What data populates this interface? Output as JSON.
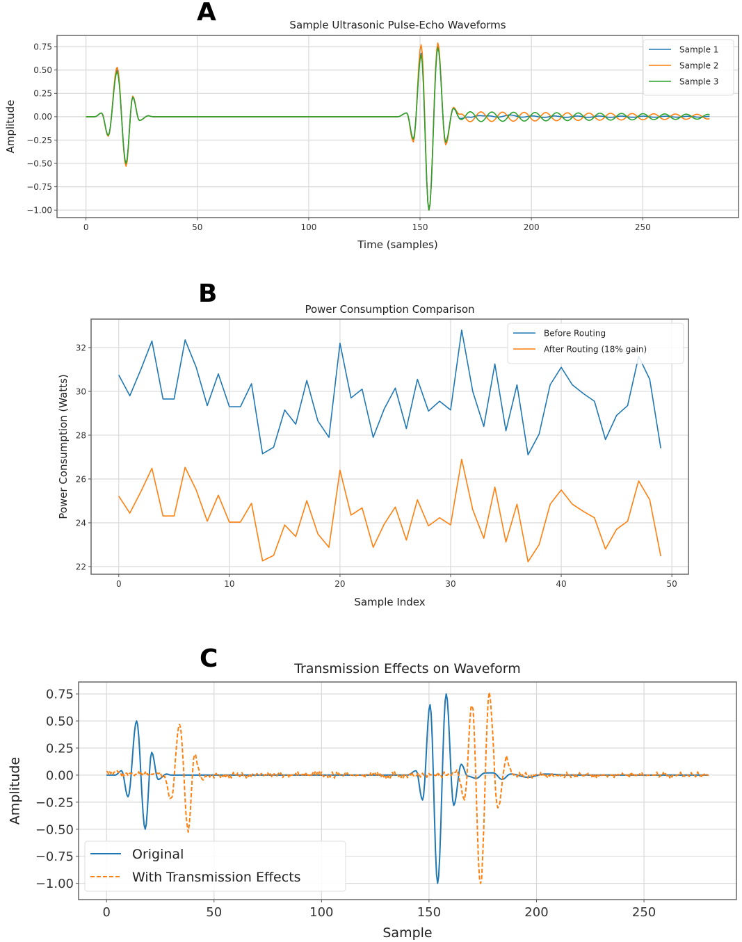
{
  "panels": [
    {
      "letter": "A"
    },
    {
      "letter": "B"
    },
    {
      "letter": "C"
    }
  ],
  "chart_data": [
    {
      "type": "line",
      "title": "Sample Ultrasonic Pulse-Echo Waveforms",
      "xlabel": "Time (samples)",
      "ylabel": "Amplitude",
      "xlim": [
        -13,
        293
      ],
      "ylim": [
        -1.08,
        0.87
      ],
      "xticks": [
        0,
        50,
        100,
        150,
        200,
        250
      ],
      "xtick_labels": [
        "0",
        "50",
        "100",
        "150",
        "200",
        "250"
      ],
      "yticks": [
        0.75,
        0.5,
        0.25,
        0.0,
        -0.25,
        -0.5,
        -0.75,
        -1.0
      ],
      "ytick_labels": [
        "0.75",
        "0.50",
        "0.25",
        "0.00",
        "−0.25",
        "−0.50",
        "−0.75",
        "−1.00"
      ],
      "grid": true,
      "legend_position": "top-right",
      "series": [
        {
          "name": "Sample 1",
          "color": "#1f77b4",
          "points": [
            [
              0,
              0
            ],
            [
              4,
              0
            ],
            [
              7,
              0.04
            ],
            [
              10,
              -0.2
            ],
            [
              14,
              0.5
            ],
            [
              18,
              -0.5
            ],
            [
              21,
              0.21
            ],
            [
              24,
              -0.04
            ],
            [
              28,
              0.01
            ],
            [
              30,
              0
            ],
            [
              140,
              0
            ],
            [
              144,
              0.04
            ],
            [
              147,
              -0.24
            ],
            [
              150.5,
              0.68
            ],
            [
              154,
              -1.0
            ],
            [
              158,
              0.75
            ],
            [
              161.5,
              -0.28
            ],
            [
              165,
              0.09
            ],
            [
              168,
              -0.02
            ],
            [
              172,
              -0.01
            ],
            [
              176,
              0.02
            ],
            [
              180,
              0.0
            ],
            [
              190,
              0.01
            ],
            [
              200,
              0.0
            ],
            [
              280,
              0
            ]
          ],
          "ring": {
            "start": 168,
            "end": 280,
            "amplitude": 0.01,
            "period": 10,
            "phase": 0
          }
        },
        {
          "name": "Sample 2",
          "color": "#ff7f0e",
          "points": [
            [
              0,
              0
            ],
            [
              4,
              0
            ],
            [
              7,
              0.04
            ],
            [
              10,
              -0.21
            ],
            [
              14,
              0.53
            ],
            [
              18,
              -0.53
            ],
            [
              21,
              0.22
            ],
            [
              24,
              -0.04
            ],
            [
              28,
              0.01
            ],
            [
              30,
              0
            ],
            [
              140,
              0
            ],
            [
              144,
              0.04
            ],
            [
              147,
              -0.27
            ],
            [
              150.5,
              0.77
            ],
            [
              154,
              -1.0
            ],
            [
              158,
              0.79
            ],
            [
              161.5,
              -0.3
            ],
            [
              165,
              0.1
            ],
            [
              168,
              0.0
            ],
            [
              280,
              0
            ]
          ],
          "ring": {
            "start": 166,
            "end": 280,
            "amplitude": 0.055,
            "period": 9.7,
            "phase": 0.5
          }
        },
        {
          "name": "Sample 3",
          "color": "#2ca02c",
          "points": [
            [
              0,
              0
            ],
            [
              4,
              0
            ],
            [
              7,
              0.04
            ],
            [
              10,
              -0.2
            ],
            [
              14,
              0.48
            ],
            [
              18,
              -0.5
            ],
            [
              21,
              0.21
            ],
            [
              24,
              -0.04
            ],
            [
              28,
              0.01
            ],
            [
              30,
              0
            ],
            [
              140,
              0
            ],
            [
              144,
              0.04
            ],
            [
              147,
              -0.24
            ],
            [
              150.5,
              0.66
            ],
            [
              154,
              -1.0
            ],
            [
              158,
              0.74
            ],
            [
              161.5,
              -0.27
            ],
            [
              165,
              0.09
            ],
            [
              168,
              0.0
            ],
            [
              280,
              0
            ]
          ],
          "ring": {
            "start": 166,
            "end": 280,
            "amplitude": 0.055,
            "period": 9.7,
            "phase": 3.6
          }
        }
      ]
    },
    {
      "type": "line",
      "title": "Power Consumption Comparison",
      "xlabel": "Sample Index",
      "ylabel": "Power Consumption (Watts)",
      "xlim": [
        -2.5,
        51.5
      ],
      "ylim": [
        21.65,
        33.3
      ],
      "xticks": [
        0,
        10,
        20,
        30,
        40,
        50
      ],
      "xtick_labels": [
        "0",
        "10",
        "20",
        "30",
        "40",
        "50"
      ],
      "yticks": [
        22,
        24,
        26,
        28,
        30,
        32
      ],
      "ytick_labels": [
        "22",
        "24",
        "26",
        "28",
        "30",
        "32"
      ],
      "grid": true,
      "legend_position": "top-right",
      "x": [
        0,
        1,
        2,
        3,
        4,
        5,
        6,
        7,
        8,
        9,
        10,
        11,
        12,
        13,
        14,
        15,
        16,
        17,
        18,
        19,
        20,
        21,
        22,
        23,
        24,
        25,
        26,
        27,
        28,
        29,
        30,
        31,
        32,
        33,
        34,
        35,
        36,
        37,
        38,
        39,
        40,
        41,
        42,
        43,
        44,
        45,
        46,
        47,
        48,
        49
      ],
      "series": [
        {
          "name": "Before Routing",
          "color": "#1f77b4",
          "values": [
            30.75,
            29.8,
            31.0,
            32.3,
            29.65,
            29.65,
            32.35,
            31.1,
            29.35,
            30.8,
            29.3,
            29.3,
            30.35,
            27.15,
            27.45,
            29.15,
            28.5,
            30.5,
            28.65,
            27.9,
            32.2,
            29.7,
            30.1,
            27.9,
            29.2,
            30.15,
            28.3,
            30.55,
            29.1,
            29.55,
            29.15,
            32.8,
            30.0,
            28.4,
            31.25,
            28.2,
            30.3,
            27.1,
            28.05,
            30.3,
            31.1,
            30.3,
            29.9,
            29.55,
            27.8,
            28.9,
            29.35,
            31.6,
            30.55,
            27.4
          ]
        },
        {
          "name": "After Routing (18% gain)",
          "color": "#ff7f0e",
          "values": [
            25.22,
            24.44,
            25.42,
            26.49,
            24.31,
            24.31,
            26.53,
            25.5,
            24.07,
            25.26,
            24.03,
            24.03,
            24.89,
            22.26,
            22.51,
            23.9,
            23.37,
            25.01,
            23.49,
            22.88,
            26.4,
            24.35,
            24.68,
            22.88,
            23.94,
            24.72,
            23.21,
            25.05,
            23.86,
            24.23,
            23.9,
            26.9,
            24.6,
            23.29,
            25.63,
            23.12,
            24.85,
            22.22,
            23.0,
            24.85,
            25.5,
            24.85,
            24.52,
            24.23,
            22.8,
            23.7,
            24.07,
            25.91,
            25.05,
            22.47
          ]
        }
      ]
    },
    {
      "type": "line",
      "title": "Transmission Effects on Waveform",
      "xlabel": "Sample",
      "ylabel": "Amplitude",
      "xlim": [
        -13,
        293
      ],
      "ylim": [
        -1.15,
        0.86
      ],
      "xticks": [
        0,
        50,
        100,
        150,
        200,
        250
      ],
      "xtick_labels": [
        "0",
        "50",
        "100",
        "150",
        "200",
        "250"
      ],
      "yticks": [
        0.75,
        0.5,
        0.25,
        0.0,
        -0.25,
        -0.5,
        -0.75,
        -1.0
      ],
      "ytick_labels": [
        "0.75",
        "0.50",
        "0.25",
        "0.00",
        "−0.25",
        "−0.50",
        "−0.75",
        "−1.00"
      ],
      "grid": true,
      "legend_position": "bottom-left",
      "series": [
        {
          "name": "Original",
          "color": "#1f77b4",
          "style": "solid",
          "points": [
            [
              0,
              0
            ],
            [
              4,
              0
            ],
            [
              7,
              0.04
            ],
            [
              10,
              -0.2
            ],
            [
              14,
              0.5
            ],
            [
              18,
              -0.5
            ],
            [
              21,
              0.21
            ],
            [
              24,
              -0.04
            ],
            [
              28,
              0.01
            ],
            [
              30,
              0
            ],
            [
              140,
              0
            ],
            [
              144,
              0.04
            ],
            [
              147,
              -0.23
            ],
            [
              150.5,
              0.65
            ],
            [
              154,
              -1.0
            ],
            [
              158,
              0.75
            ],
            [
              161.5,
              -0.28
            ],
            [
              165,
              0.1
            ],
            [
              168,
              -0.01
            ],
            [
              172,
              -0.03
            ],
            [
              176,
              0.02
            ],
            [
              180,
              0.02
            ],
            [
              184,
              -0.04
            ],
            [
              188,
              0.01
            ],
            [
              196,
              -0.02
            ],
            [
              204,
              0.01
            ],
            [
              215,
              0.0
            ],
            [
              280,
              0
            ]
          ],
          "noise": 0.0
        },
        {
          "name": "With Transmission Effects",
          "color": "#ff7f0e",
          "style": "dashed",
          "points": [
            [
              0,
              0.03
            ],
            [
              20,
              0
            ],
            [
              24,
              0.02
            ],
            [
              27,
              -0.03
            ],
            [
              30,
              -0.23
            ],
            [
              34,
              0.47
            ],
            [
              38,
              -0.5
            ],
            [
              41,
              0.2
            ],
            [
              44,
              -0.04
            ],
            [
              48,
              0.0
            ],
            [
              160,
              0
            ],
            [
              163,
              0.03
            ],
            [
              166.5,
              -0.23
            ],
            [
              170,
              0.67
            ],
            [
              174,
              -1.02
            ],
            [
              178,
              0.75
            ],
            [
              182,
              -0.3
            ],
            [
              186,
              0.15
            ],
            [
              189,
              0.0
            ],
            [
              280,
              0
            ]
          ],
          "noise": 0.03
        }
      ]
    }
  ]
}
